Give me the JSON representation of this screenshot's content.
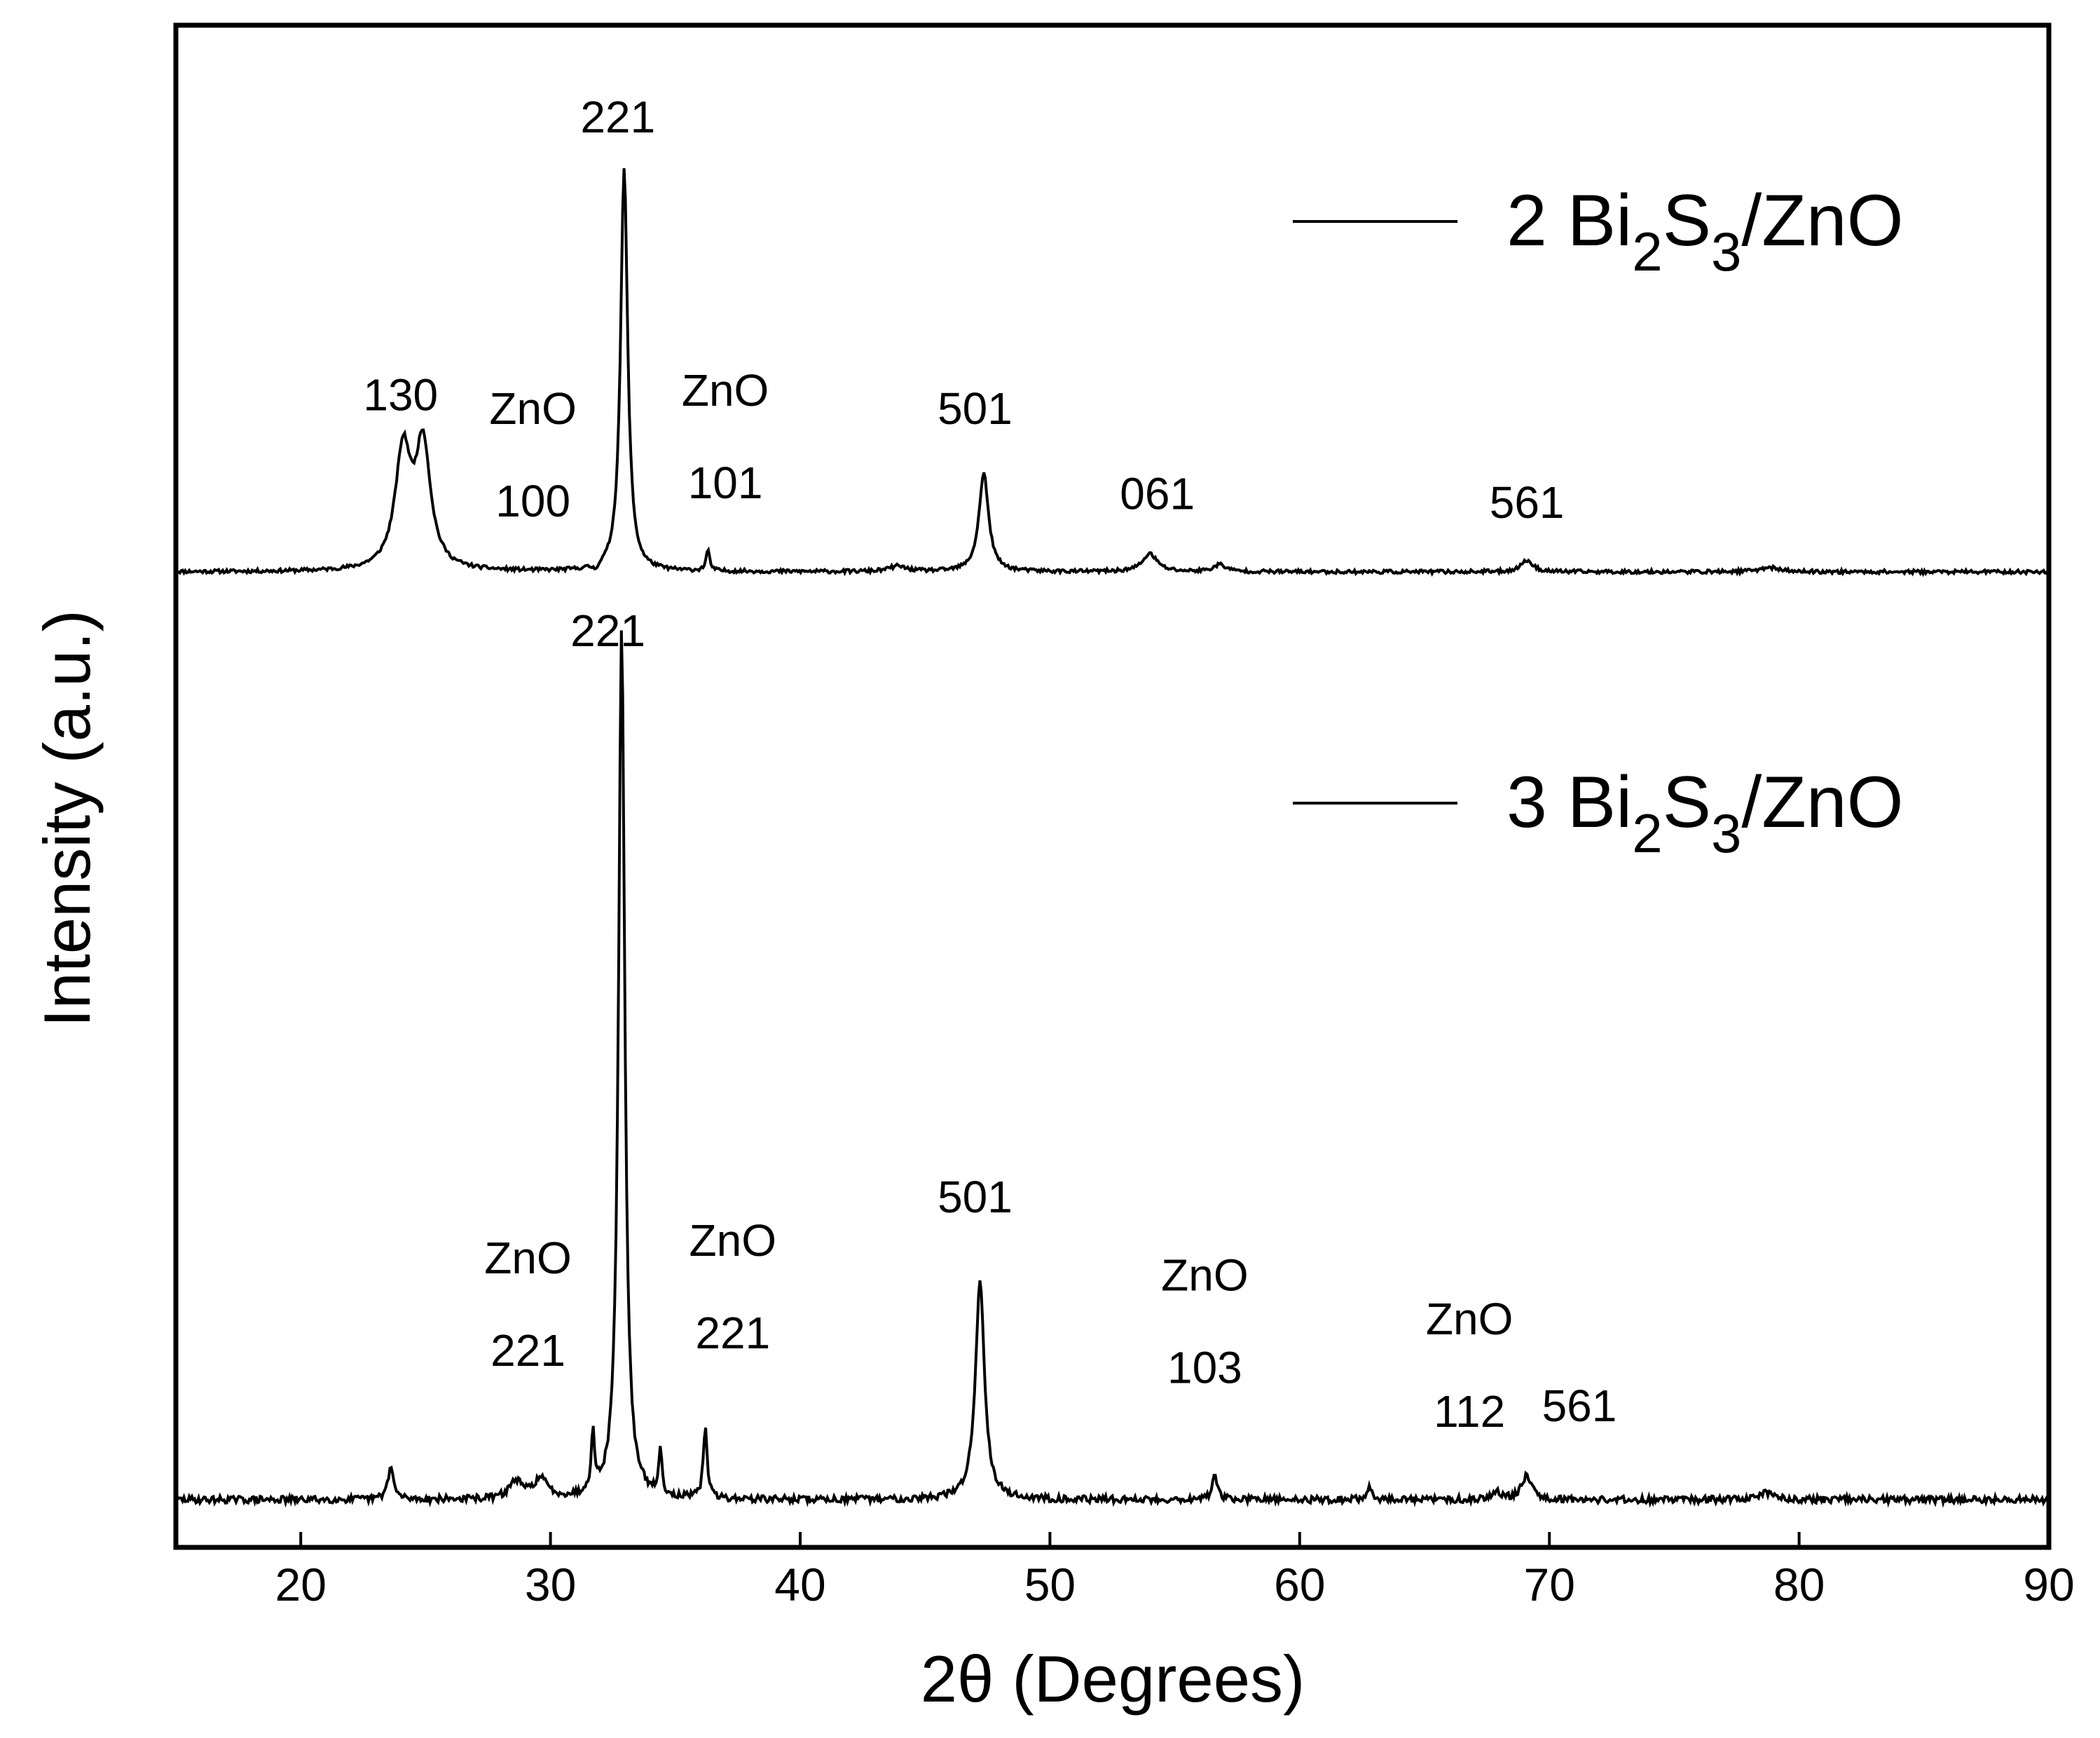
{
  "chart_data": {
    "type": "line",
    "title": "",
    "xlabel": "2θ (Degrees)",
    "ylabel": "Intensity (a.u.)",
    "xlim": [
      15,
      90
    ],
    "xticks": [
      "20",
      "30",
      "40",
      "50",
      "60",
      "70",
      "80",
      "90"
    ],
    "yticks_shown": false,
    "grid": false,
    "legend_placement": "right, beside each trace",
    "colors": {
      "line": "#000000",
      "frame": "#000000",
      "background": "#ffffff"
    },
    "series": [
      {
        "name": "2 Bi2S3/ZnO",
        "legend": {
          "prefix": "2 Bi",
          "sub1": "2",
          "mid": "S",
          "sub2": "3",
          "suffix": "/ZnO"
        },
        "baseline": 0,
        "noise_seed": 11,
        "peaks": [
          {
            "x": 24.1,
            "h": 0.26,
            "w": 0.38
          },
          {
            "x": 24.9,
            "h": 0.27,
            "w": 0.36
          },
          {
            "x": 32.95,
            "h": 0.9,
            "w": 0.17
          },
          {
            "x": 36.3,
            "h": 0.045,
            "w": 0.09
          },
          {
            "x": 43.9,
            "h": 0.012,
            "w": 0.4
          },
          {
            "x": 47.35,
            "h": 0.22,
            "w": 0.23
          },
          {
            "x": 54.0,
            "h": 0.04,
            "w": 0.35
          },
          {
            "x": 56.8,
            "h": 0.016,
            "w": 0.3
          },
          {
            "x": 69.1,
            "h": 0.026,
            "w": 0.28
          },
          {
            "x": 78.8,
            "h": 0.01,
            "w": 0.45
          }
        ],
        "dip": {
          "x": 31.8,
          "h": -0.012,
          "w": 0.14
        },
        "annotations": [
          {
            "x": 24.0,
            "lines": [
              "130"
            ],
            "y": 0.36
          },
          {
            "x": 29.3,
            "lines": [
              "ZnO",
              "100"
            ],
            "y": 0.33
          },
          {
            "x": 32.7,
            "lines": [
              "221"
            ],
            "y": 0.98
          },
          {
            "x": 37.0,
            "lines": [
              "ZnO",
              "101"
            ],
            "y": 0.37
          },
          {
            "x": 47.0,
            "lines": [
              "501"
            ],
            "y": 0.33
          },
          {
            "x": 54.3,
            "lines": [
              "061"
            ],
            "y": 0.14
          },
          {
            "x": 69.1,
            "lines": [
              "561"
            ],
            "y": 0.12
          }
        ]
      },
      {
        "name": "3 Bi2S3/ZnO",
        "legend": {
          "prefix": "3 Bi",
          "sub1": "2",
          "mid": "S",
          "sub2": "3",
          "suffix": "/ZnO"
        },
        "baseline": 0,
        "noise_seed": 29,
        "peaks": [
          {
            "x": 23.6,
            "h": 0.037,
            "w": 0.14
          },
          {
            "x": 28.6,
            "h": 0.02,
            "w": 0.3
          },
          {
            "x": 29.6,
            "h": 0.022,
            "w": 0.35
          },
          {
            "x": 31.7,
            "h": 0.07,
            "w": 0.08
          },
          {
            "x": 32.85,
            "h": 1.0,
            "w": 0.15
          },
          {
            "x": 34.4,
            "h": 0.05,
            "w": 0.08
          },
          {
            "x": 36.2,
            "h": 0.085,
            "w": 0.09
          },
          {
            "x": 47.2,
            "h": 0.25,
            "w": 0.22
          },
          {
            "x": 56.6,
            "h": 0.025,
            "w": 0.14
          },
          {
            "x": 62.8,
            "h": 0.013,
            "w": 0.14
          },
          {
            "x": 67.9,
            "h": 0.01,
            "w": 0.2
          },
          {
            "x": 69.1,
            "h": 0.028,
            "w": 0.25
          },
          {
            "x": 78.7,
            "h": 0.008,
            "w": 0.4
          }
        ],
        "dip": null,
        "annotations": [
          {
            "x": 29.1,
            "lines": [
              "ZnO",
              "221"
            ],
            "y": 0.26
          },
          {
            "x": 32.3,
            "lines": [
              "221"
            ],
            "y": 0.98
          },
          {
            "x": 37.3,
            "lines": [
              "ZnO",
              "221"
            ],
            "y": 0.28
          },
          {
            "x": 47.0,
            "lines": [
              "501"
            ],
            "y": 0.33
          },
          {
            "x": 56.2,
            "lines": [
              "ZnO",
              "103"
            ],
            "y": 0.24
          },
          {
            "x": 66.8,
            "lines": [
              "ZnO",
              "112"
            ],
            "y": 0.19
          },
          {
            "x": 71.2,
            "lines": [
              "561"
            ],
            "y": 0.09
          }
        ]
      }
    ]
  }
}
